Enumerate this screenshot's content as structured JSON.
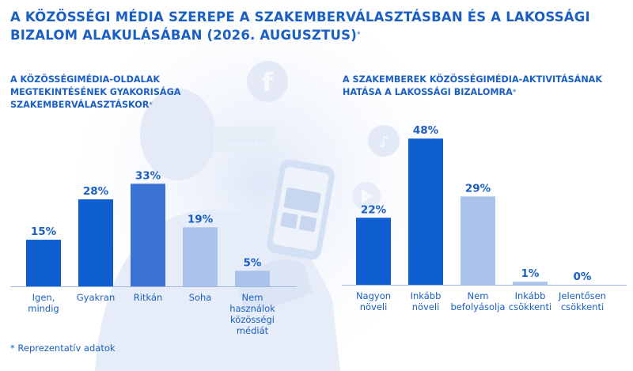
{
  "title": "A KÖZÖSSÉGI MÉDIA SZEREPE A SZAKEMBERVÁLASZTÁSBAN ÉS A LAKOSSÁGI BIZALOM ALAKULÁSÁBAN (2026. AUGUSZTUS)",
  "title_mark": "*",
  "footnote": "* Reprezentatív adatok",
  "colors": {
    "dark_blue": "#0f5fd0",
    "mid_blue": "#3b73d4",
    "light_blue": "#a9c3ea",
    "text_blue": "#1a5fc4"
  },
  "chart_data": [
    {
      "type": "bar",
      "title": "A KÖZÖSSÉGIMÉDIA-OLDALAK MEGTEKINTÉSÉNEK GYAKORISÁGA SZAKEMBERVÁLASZTÁSKOR",
      "title_mark": "*",
      "categories": [
        "Igen, mindig",
        "Gyakran",
        "Ritkán",
        "Soha",
        "Nem használok közösségi médiát"
      ],
      "values": [
        15,
        28,
        33,
        19,
        5
      ],
      "value_labels": [
        "15%",
        "28%",
        "33%",
        "19%",
        "5%"
      ],
      "bar_colors": [
        "#0f5fd0",
        "#0f5fd0",
        "#3b73d4",
        "#a9c3ea",
        "#a9c3ea"
      ],
      "unit": "%",
      "grid": false,
      "legend": "none"
    },
    {
      "type": "bar",
      "title": "A SZAKEMBEREK KÖZÖSSÉGIMÉDIA-AKTIVITÁSÁNAK HATÁSA A LAKOSSÁGI BIZALOMRA",
      "title_mark": "*",
      "categories": [
        "Nagyon növeli",
        "Inkább növeli",
        "Nem befolyásolja",
        "Inkább csökkenti",
        "Jelentősen csökkenti"
      ],
      "values": [
        22,
        48,
        29,
        1,
        0
      ],
      "value_labels": [
        "22%",
        "48%",
        "29%",
        "1%",
        "0%"
      ],
      "bar_colors": [
        "#0f5fd0",
        "#0f5fd0",
        "#a9c3ea",
        "#a9c3ea",
        "#a9c3ea"
      ],
      "unit": "%",
      "grid": false,
      "legend": "none"
    }
  ]
}
